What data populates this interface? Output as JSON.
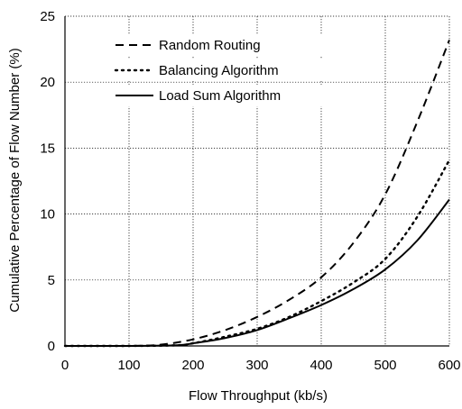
{
  "chart_data": {
    "type": "line",
    "xlabel": "Flow Throughput (kb/s)",
    "ylabel": "Cumulative Percentage of Flow Number (%)",
    "xlim": [
      0,
      600
    ],
    "ylim": [
      0,
      25
    ],
    "xticks": [
      0,
      100,
      200,
      300,
      400,
      500,
      600
    ],
    "yticks": [
      0,
      5,
      10,
      15,
      20,
      25
    ],
    "xtick_labels": [
      "0",
      "100",
      "200",
      "300",
      "400",
      "500",
      "600"
    ],
    "ytick_labels": [
      "0",
      "5",
      "10",
      "15",
      "20",
      "25"
    ],
    "grid": true,
    "legend_position": "top-left",
    "series": [
      {
        "name": "Random Routing",
        "style": "dashed",
        "color": "#000000",
        "x": [
          0,
          100,
          150,
          200,
          250,
          300,
          350,
          400,
          450,
          500,
          550,
          600
        ],
        "y": [
          0,
          0,
          0.1,
          0.5,
          1.2,
          2.2,
          3.5,
          5.2,
          7.8,
          11.5,
          17.0,
          23.2
        ]
      },
      {
        "name": "Balancing Algorithm",
        "style": "dotted",
        "color": "#000000",
        "x": [
          0,
          100,
          175,
          200,
          250,
          300,
          350,
          400,
          450,
          500,
          550,
          600
        ],
        "y": [
          0,
          0,
          0.05,
          0.2,
          0.7,
          1.3,
          2.2,
          3.4,
          4.8,
          6.6,
          9.8,
          14.1
        ]
      },
      {
        "name": "Load Sum Algorithm",
        "style": "solid",
        "color": "#000000",
        "x": [
          0,
          100,
          175,
          200,
          250,
          300,
          350,
          400,
          450,
          500,
          550,
          600
        ],
        "y": [
          0,
          0,
          0.05,
          0.2,
          0.6,
          1.2,
          2.1,
          3.1,
          4.3,
          5.8,
          8.0,
          11.1
        ]
      }
    ]
  }
}
